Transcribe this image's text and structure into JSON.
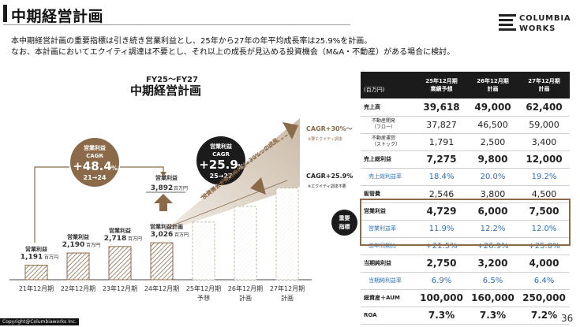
{
  "header": {
    "title": "中期経営計画",
    "logo_line1": "COLUMBIA",
    "logo_line2": "WORKS"
  },
  "description": {
    "line1": "本中期経営計画の重要指標は引き続き営業利益とし、25年から27年の年平均成長率は25.9%を計画。",
    "line2": "なお、本計画においてエクイティ調達は不要とし、それ以上の成長が見込める投資機会（M&A・不動産）がある場合に検討。"
  },
  "chart_heading": {
    "period": "FY25～FY27",
    "title": "中期経営計画"
  },
  "chart_data": {
    "type": "bar",
    "categories": [
      "21年12月期",
      "22年12月期",
      "23年12月期",
      "24年12月期",
      "25年12月期",
      "26年12月期",
      "27年12月期"
    ],
    "category_sub": [
      "",
      "",
      "",
      "",
      "予想",
      "計画",
      "計画"
    ],
    "values": [
      1191,
      2190,
      2718,
      3026,
      4729,
      6000,
      7500
    ],
    "bar_label_title": "営業利益",
    "bar_label_title_24": "営業利益計画",
    "bar_value_text": [
      "1,191",
      "2,190",
      "2,718",
      "3,026"
    ],
    "unit": "百万円",
    "actual_24": {
      "title": "営業利益",
      "value_text": "3,892"
    },
    "cagr_past": {
      "title": "営業利益",
      "sub": "CAGR",
      "value": "+48.4",
      "pct": "%",
      "period": "21→24"
    },
    "cagr_plan": {
      "title": "営業利益",
      "sub": "CAGR",
      "value": "+25.9",
      "pct": "%",
      "period": "25→27"
    },
    "trend_label": "投資機会が見込めれば+30%～の成長",
    "note_upper": {
      "value": "CAGR+30%～",
      "note": "※要エクイティ調達"
    },
    "note_lower": {
      "value": "CAGR+25.9%",
      "note": "※エクイティ調達不要"
    },
    "colors": {
      "hatch": "#8b6a4a",
      "dark": "#1b1b1b",
      "brown": "#8b6a4a",
      "plan_dash": "#c9b6a0",
      "gradient_start": "#f1ece6",
      "gradient_end": "#cbbba8"
    }
  },
  "table": {
    "unit": "(百万円)",
    "columns": [
      {
        "line1": "25年12月期",
        "line2": "業績予想"
      },
      {
        "line1": "26年12月期",
        "line2": "計画"
      },
      {
        "line1": "27年12月期",
        "line2": "計画"
      }
    ],
    "rows": [
      {
        "label": "売上高",
        "values": [
          "39,618",
          "49,000",
          "62,400"
        ],
        "style": "bold"
      },
      {
        "label": "不動産開発",
        "label2": "（フロー）",
        "values": [
          "37,827",
          "46,500",
          "59,000"
        ],
        "style": "sub"
      },
      {
        "label": "不動産運営",
        "label2": "（ストック）",
        "values": [
          "1,791",
          "2,500",
          "3,400"
        ],
        "style": "sub"
      },
      {
        "label": "売上総利益",
        "values": [
          "7,275",
          "9,800",
          "12,000"
        ],
        "style": "bold"
      },
      {
        "label": "売上総利益率",
        "values": [
          "18.4%",
          "20.0%",
          "19.2%"
        ],
        "style": "blue"
      },
      {
        "label": "販管費",
        "values": [
          "2,546",
          "3,800",
          "4,500"
        ],
        "style": "plain"
      },
      {
        "label": "営業利益",
        "values": [
          "4,729",
          "6,000",
          "7,500"
        ],
        "style": "bold"
      },
      {
        "label": "営業利益率",
        "values": [
          "11.9%",
          "12.2%",
          "12.0%"
        ],
        "style": "blue"
      },
      {
        "label": "前年同期比",
        "values": [
          "+21.5%",
          "+26.9%",
          "+25.0%"
        ],
        "style": "blue"
      },
      {
        "label": "当期純利益",
        "values": [
          "2,750",
          "3,200",
          "4,000"
        ],
        "style": "bold"
      },
      {
        "label": "当期純利益率",
        "values": [
          "6.9%",
          "6.5%",
          "6.4%"
        ],
        "style": "blue"
      },
      {
        "label": "総資産＋AUM",
        "values": [
          "100,000",
          "160,000",
          "250,000"
        ],
        "style": "bold"
      },
      {
        "label": "ROA",
        "values": [
          "7.3%",
          "7.3%",
          "7.2%"
        ],
        "style": "bold"
      }
    ]
  },
  "key_badge": {
    "line1": "重要",
    "line2": "指標"
  },
  "footer": {
    "copyright": "Copyright@Columbiaworks Inc.",
    "page_number": "36"
  }
}
